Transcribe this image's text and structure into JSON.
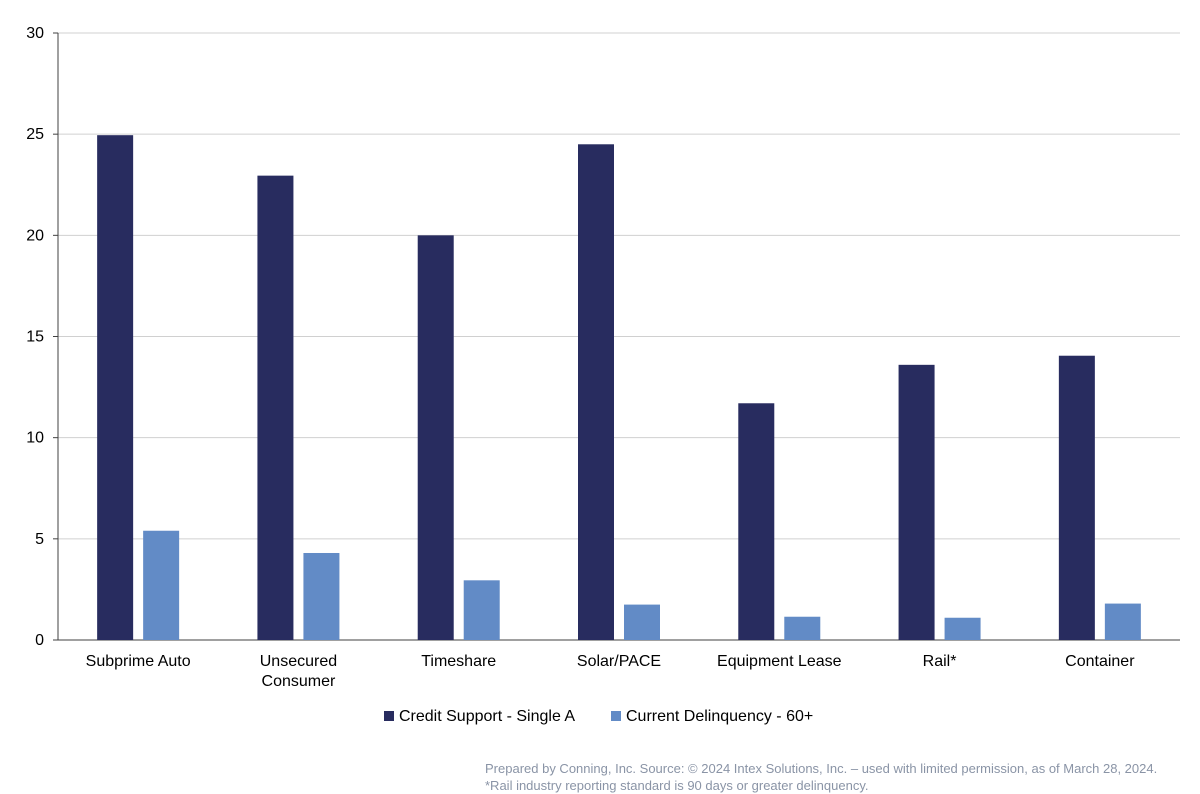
{
  "chart_data": {
    "type": "bar",
    "categories": [
      [
        "Subprime Auto"
      ],
      [
        "Unsecured",
        "Consumer"
      ],
      [
        "Timeshare"
      ],
      [
        "Solar/PACE"
      ],
      [
        "Equipment Lease"
      ],
      [
        "Rail*"
      ],
      [
        "Container"
      ]
    ],
    "series": [
      {
        "name": "Credit Support - Single A",
        "color": "#282c5f",
        "values": [
          24.95,
          22.95,
          20.0,
          24.5,
          11.7,
          13.6,
          14.05
        ]
      },
      {
        "name": "Current Delinquency - 60+",
        "color": "#628bc6",
        "values": [
          5.4,
          4.3,
          2.95,
          1.75,
          1.15,
          1.1,
          1.8
        ]
      }
    ],
    "ylim": [
      0,
      30
    ],
    "yticks": [
      0,
      5,
      10,
      15,
      20,
      25,
      30
    ],
    "grid": true,
    "legend": "bottom-center"
  },
  "footnotes": {
    "line1": "Prepared by Conning, Inc. Source: © 2024 Intex Solutions, Inc. – used with limited permission, as of March 28, 2024.",
    "line2": "*Rail industry reporting standard is 90 days or greater delinquency."
  }
}
